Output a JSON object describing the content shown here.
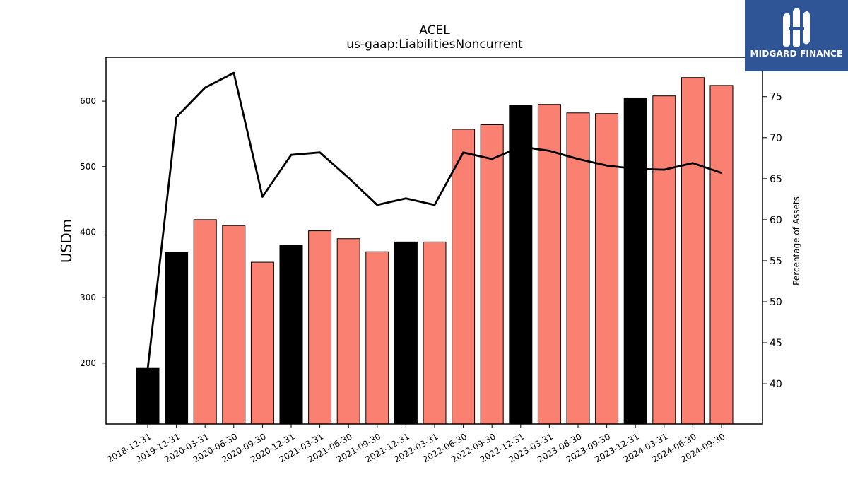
{
  "chart_data": {
    "type": "bar",
    "title": "ACEL",
    "subtitle": "us-gaap:LiabilitiesNoncurrent",
    "ylabel": "USDm",
    "y2label": "Percentage of Assets",
    "ylim": [
      107,
      667
    ],
    "y2lim": [
      35.1,
      79.8
    ],
    "yticks": [
      200,
      300,
      400,
      500,
      600
    ],
    "y2ticks": [
      40,
      45,
      50,
      55,
      60,
      65,
      70,
      75
    ],
    "grid": false,
    "categories": [
      "2018-12-31",
      "2019-12-31",
      "2020-03-31",
      "2020-06-30",
      "2020-09-30",
      "2020-12-31",
      "2021-03-31",
      "2021-06-30",
      "2021-09-30",
      "2021-12-31",
      "2022-03-31",
      "2022-06-30",
      "2022-09-30",
      "2022-12-31",
      "2023-03-31",
      "2023-06-30",
      "2023-09-30",
      "2023-12-31",
      "2024-03-31",
      "2024-06-30",
      "2024-09-30"
    ],
    "values": [
      192,
      369,
      419,
      410,
      354,
      380,
      402,
      390,
      370,
      385,
      385,
      557,
      564,
      594,
      595,
      582,
      581,
      605,
      608,
      636,
      624
    ],
    "bar_kind": [
      "annual",
      "annual",
      "quarterly",
      "quarterly",
      "quarterly",
      "annual",
      "quarterly",
      "quarterly",
      "quarterly",
      "annual",
      "quarterly",
      "quarterly",
      "quarterly",
      "annual",
      "quarterly",
      "quarterly",
      "quarterly",
      "annual",
      "quarterly",
      "quarterly",
      "quarterly"
    ],
    "line_series": {
      "values": [
        41.8,
        72.5,
        76.1,
        77.9,
        62.8,
        67.9,
        68.2,
        65.1,
        61.8,
        62.6,
        61.8,
        68.2,
        67.4,
        68.9,
        68.4,
        67.4,
        66.6,
        66.2,
        66.1,
        66.9,
        65.7
      ]
    },
    "colors": {
      "annual": "#000000",
      "quarterly": "#fa8072",
      "line": "#000000"
    }
  },
  "logo": {
    "text": "MIDGARD FINANCE",
    "background": "#2f5597"
  }
}
